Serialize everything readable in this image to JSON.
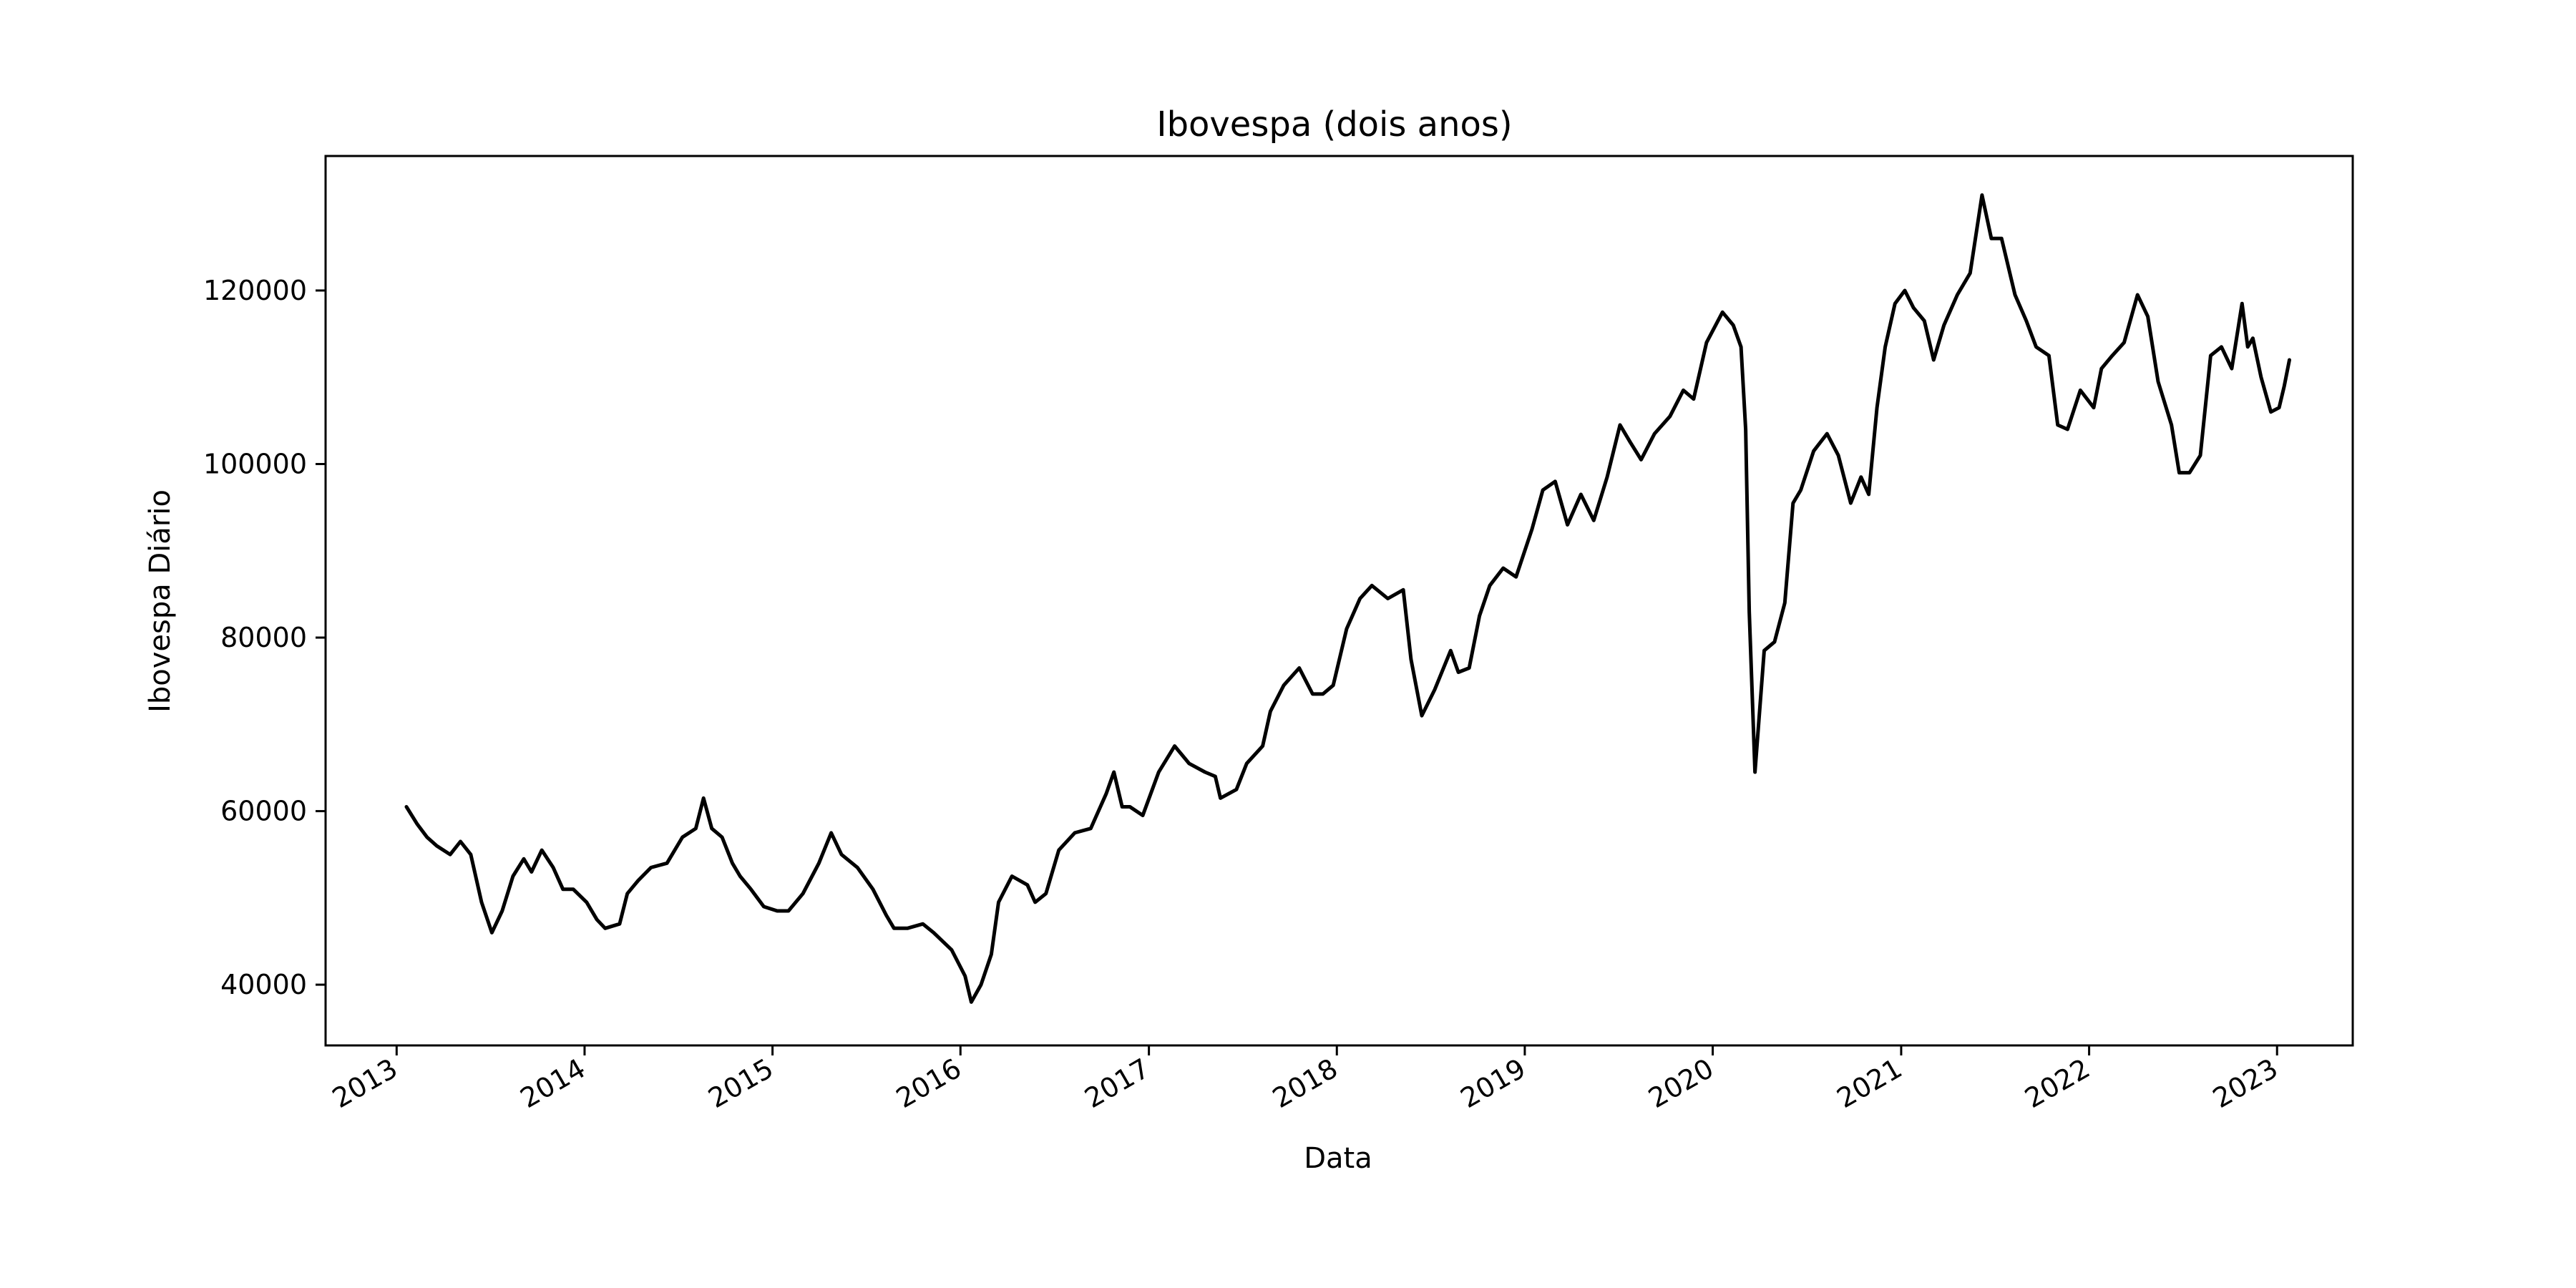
{
  "chart_data": {
    "type": "line",
    "title": "Ibovespa (dois anos)",
    "xlabel": "Data",
    "ylabel": "Ibovespa Diário",
    "xlim": [
      "2012-08-16",
      "2023-05-28"
    ],
    "ylim": [
      33000,
      135500
    ],
    "grid": false,
    "line_color": "#000000",
    "x_ticks": [
      {
        "label": "2013",
        "date": "2013-01-01"
      },
      {
        "label": "2014",
        "date": "2014-01-01"
      },
      {
        "label": "2015",
        "date": "2015-01-01"
      },
      {
        "label": "2016",
        "date": "2016-01-01"
      },
      {
        "label": "2017",
        "date": "2017-01-01"
      },
      {
        "label": "2018",
        "date": "2018-01-01"
      },
      {
        "label": "2019",
        "date": "2019-01-01"
      },
      {
        "label": "2020",
        "date": "2020-01-01"
      },
      {
        "label": "2021",
        "date": "2021-01-01"
      },
      {
        "label": "2022",
        "date": "2022-01-01"
      },
      {
        "label": "2023",
        "date": "2023-01-01"
      }
    ],
    "y_ticks": [
      {
        "label": "40000",
        "value": 40000
      },
      {
        "label": "60000",
        "value": 60000
      },
      {
        "label": "80000",
        "value": 80000
      },
      {
        "label": "100000",
        "value": 100000
      },
      {
        "label": "120000",
        "value": 120000
      }
    ],
    "series": [
      {
        "x": [
          "2013-01-20",
          "2013-02-10",
          "2013-03-01",
          "2013-03-20",
          "2013-04-15",
          "2013-05-05",
          "2013-05-25",
          "2013-06-15",
          "2013-07-05",
          "2013-07-25",
          "2013-08-15",
          "2013-09-05",
          "2013-09-20",
          "2013-10-10",
          "2013-11-01",
          "2013-11-20",
          "2013-12-10",
          "2014-01-05",
          "2014-01-25",
          "2014-02-10",
          "2014-03-10",
          "2014-03-25",
          "2014-04-15",
          "2014-05-10",
          "2014-06-10",
          "2014-07-10",
          "2014-08-05",
          "2014-08-20",
          "2014-09-05",
          "2014-09-25",
          "2014-10-15",
          "2014-10-30",
          "2014-11-20",
          "2014-12-15",
          "2015-01-10",
          "2015-02-01",
          "2015-03-01",
          "2015-04-01",
          "2015-04-25",
          "2015-05-15",
          "2015-06-15",
          "2015-07-15",
          "2015-08-10",
          "2015-08-25",
          "2015-09-20",
          "2015-10-20",
          "2015-11-10",
          "2015-12-15",
          "2016-01-10",
          "2016-01-22",
          "2016-02-10",
          "2016-03-01",
          "2016-03-15",
          "2016-04-10",
          "2016-05-10",
          "2016-05-25",
          "2016-06-15",
          "2016-07-10",
          "2016-08-10",
          "2016-09-10",
          "2016-10-10",
          "2016-10-25",
          "2016-11-10",
          "2016-11-25",
          "2016-12-20",
          "2017-01-20",
          "2017-02-20",
          "2017-03-20",
          "2017-04-20",
          "2017-05-10",
          "2017-05-20",
          "2017-06-20",
          "2017-07-10",
          "2017-08-10",
          "2017-08-25",
          "2017-09-20",
          "2017-10-20",
          "2017-11-15",
          "2017-12-05",
          "2017-12-25",
          "2018-01-20",
          "2018-02-15",
          "2018-03-10",
          "2018-04-10",
          "2018-05-10",
          "2018-05-25",
          "2018-06-15",
          "2018-07-10",
          "2018-08-10",
          "2018-08-25",
          "2018-09-15",
          "2018-10-05",
          "2018-10-25",
          "2018-11-20",
          "2018-12-15",
          "2019-01-15",
          "2019-02-05",
          "2019-03-01",
          "2019-03-25",
          "2019-04-20",
          "2019-05-15",
          "2019-06-10",
          "2019-07-05",
          "2019-07-25",
          "2019-08-15",
          "2019-09-10",
          "2019-10-10",
          "2019-11-05",
          "2019-11-25",
          "2019-12-20",
          "2020-01-20",
          "2020-02-10",
          "2020-02-25",
          "2020-03-05",
          "2020-03-12",
          "2020-03-23",
          "2020-04-10",
          "2020-04-30",
          "2020-05-20",
          "2020-06-05",
          "2020-06-20",
          "2020-07-15",
          "2020-08-10",
          "2020-09-01",
          "2020-09-25",
          "2020-10-15",
          "2020-10-30",
          "2020-11-15",
          "2020-12-01",
          "2020-12-20",
          "2021-01-08",
          "2021-01-25",
          "2021-02-15",
          "2021-03-05",
          "2021-03-25",
          "2021-04-20",
          "2021-05-15",
          "2021-06-07",
          "2021-06-25",
          "2021-07-15",
          "2021-08-10",
          "2021-09-01",
          "2021-09-20",
          "2021-10-15",
          "2021-11-01",
          "2021-11-20",
          "2021-12-15",
          "2022-01-10",
          "2022-01-25",
          "2022-02-15",
          "2022-03-10",
          "2022-04-05",
          "2022-04-25",
          "2022-05-15",
          "2022-06-10",
          "2022-06-25",
          "2022-07-15",
          "2022-08-05",
          "2022-08-25",
          "2022-09-15",
          "2022-10-05",
          "2022-10-25",
          "2022-11-05",
          "2022-11-15",
          "2022-12-01",
          "2022-12-20",
          "2023-01-05",
          "2023-01-15",
          "2023-01-25"
        ],
        "values": [
          60500,
          58500,
          57000,
          56000,
          55000,
          56500,
          55000,
          49500,
          46000,
          48500,
          52500,
          54500,
          53000,
          55500,
          53500,
          51000,
          51000,
          49500,
          47500,
          46500,
          47000,
          50500,
          52000,
          53500,
          54000,
          57000,
          58000,
          61500,
          58000,
          57000,
          54000,
          52500,
          51000,
          49000,
          48500,
          48500,
          50500,
          54000,
          57500,
          55000,
          53500,
          51000,
          48000,
          46500,
          46500,
          47000,
          46000,
          44000,
          41000,
          38000,
          40000,
          43500,
          49500,
          52500,
          51500,
          49500,
          50500,
          55500,
          57500,
          58000,
          62000,
          64500,
          60500,
          60500,
          59500,
          64500,
          67500,
          65500,
          64500,
          64000,
          61500,
          62500,
          65500,
          67500,
          71500,
          74500,
          76500,
          73500,
          73500,
          74500,
          81000,
          84500,
          86000,
          84500,
          85500,
          77500,
          71000,
          74000,
          78500,
          76000,
          76500,
          82500,
          86000,
          88000,
          87000,
          92500,
          97000,
          98000,
          93000,
          96500,
          93500,
          98500,
          104500,
          102500,
          100500,
          103500,
          105500,
          108500,
          107500,
          114000,
          117500,
          116000,
          113500,
          104000,
          83000,
          64500,
          78500,
          79500,
          84000,
          95500,
          97000,
          101500,
          103500,
          101000,
          95500,
          98500,
          96500,
          106500,
          113500,
          118500,
          120000,
          118000,
          116500,
          112000,
          116000,
          119500,
          122000,
          131000,
          126000,
          126000,
          119500,
          116500,
          113500,
          112500,
          104500,
          104000,
          108500,
          106500,
          111000,
          112500,
          114000,
          119500,
          117000,
          109500,
          104500,
          99000,
          99000,
          101000,
          112500,
          113500,
          111000,
          118500,
          113500,
          114500,
          110000,
          106000,
          106500,
          109000,
          112000
        ]
      }
    ]
  }
}
